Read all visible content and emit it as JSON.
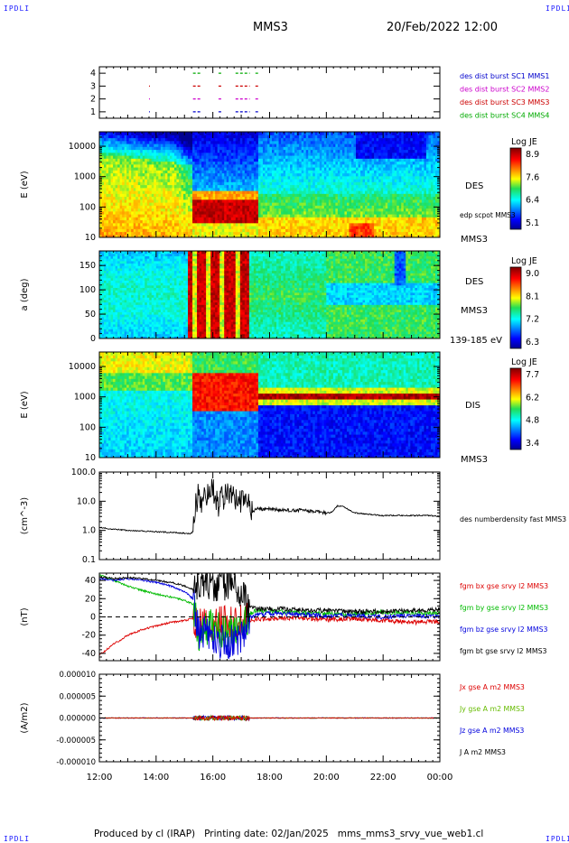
{
  "corner_label": "IPDLI",
  "header": {
    "spacecraft": "MMS3",
    "datetime": "20/Feb/2022 12:00"
  },
  "footer": {
    "produced_by": "Produced by cl (IRAP)",
    "printing_date": "Printing date: 02/Jan/2025",
    "filename": "mms_mms3_srvy_vue_web1.cl"
  },
  "x_ticks": [
    "12:00",
    "14:00",
    "16:00",
    "18:00",
    "20:00",
    "22:00",
    "00:00"
  ],
  "chart_data": [
    {
      "type": "scatter",
      "name": "burst availability",
      "ylim": [
        0.5,
        4.5
      ],
      "y_ticks": [
        "1",
        "2",
        "3",
        "4"
      ],
      "x_range_hours": [
        12,
        24
      ],
      "series": [
        {
          "name": "des dist burst SC1 MMS1",
          "color": "#0000cc",
          "level": 1,
          "intervals": [
            [
              13.75,
              13.78
            ],
            [
              15.3,
              15.6
            ],
            [
              16.2,
              16.3
            ],
            [
              16.8,
              17.3
            ],
            [
              17.5,
              17.65
            ]
          ]
        },
        {
          "name": "des dist burst SC2 MMS2",
          "color": "#cc00cc",
          "level": 2,
          "intervals": [
            [
              13.75,
              13.78
            ],
            [
              15.3,
              15.6
            ],
            [
              16.2,
              16.3
            ],
            [
              16.8,
              17.3
            ],
            [
              17.5,
              17.65
            ]
          ]
        },
        {
          "name": "des dist burst SC3 MMS3",
          "color": "#cc0000",
          "level": 3,
          "intervals": [
            [
              13.75,
              13.78
            ],
            [
              15.3,
              15.6
            ],
            [
              16.2,
              16.3
            ],
            [
              16.8,
              17.3
            ],
            [
              17.5,
              17.65
            ]
          ]
        },
        {
          "name": "des dist burst SC4 MMS4",
          "color": "#00aa00",
          "level": 4,
          "intervals": [
            [
              15.3,
              15.6
            ],
            [
              16.2,
              16.3
            ],
            [
              16.8,
              17.3
            ],
            [
              17.5,
              17.65
            ]
          ]
        }
      ]
    },
    {
      "type": "heatmap",
      "name": "electron energy spectrogram",
      "ylabel": "E (eV)",
      "ylog": true,
      "ylim": [
        10,
        30000
      ],
      "y_ticks": [
        "10",
        "100",
        "1000",
        "10000"
      ],
      "instrument": "DES",
      "spacecraft": "MMS3",
      "overlay_label": "edp scpot MMS3",
      "colorbar": {
        "title": "Log JE",
        "range": [
          5.1,
          8.9
        ],
        "ticks": [
          "8.9",
          "7.6",
          "6.4",
          "5.1"
        ]
      }
    },
    {
      "type": "heatmap",
      "name": "electron pitch angle distribution",
      "ylabel": "a (deg)",
      "ylim": [
        0,
        180
      ],
      "y_ticks": [
        "0",
        "50",
        "100",
        "150"
      ],
      "instrument": "DES",
      "spacecraft": "MMS3",
      "energy_range": "139-185 eV",
      "colorbar": {
        "title": "Log JE",
        "range": [
          6.3,
          9.0
        ],
        "ticks": [
          "9.0",
          "8.1",
          "7.2",
          "6.3"
        ]
      }
    },
    {
      "type": "heatmap",
      "name": "ion energy spectrogram",
      "ylabel": "E (eV)",
      "ylog": true,
      "ylim": [
        10,
        30000
      ],
      "y_ticks": [
        "10",
        "100",
        "1000",
        "10000"
      ],
      "instrument": "DIS",
      "spacecraft": "MMS3",
      "colorbar": {
        "title": "Log JE",
        "range": [
          3.4,
          7.7
        ],
        "ticks": [
          "7.7",
          "6.2",
          "4.8",
          "3.4"
        ]
      }
    },
    {
      "type": "line",
      "name": "density",
      "ylabel": "(cm^-3)",
      "ylog": true,
      "ylim": [
        0.1,
        100
      ],
      "y_ticks": [
        "0.1",
        "1.0",
        "10.0",
        "100.0"
      ],
      "series": [
        {
          "name": "des numberdensity fast MMS3",
          "color": "#000000",
          "x": [
            12.0,
            12.5,
            13.0,
            13.5,
            14.0,
            14.5,
            15.0,
            15.2,
            15.3,
            15.4,
            15.5,
            15.6,
            15.8,
            16.0,
            16.2,
            16.4,
            16.6,
            16.8,
            17.0,
            17.2,
            17.4,
            17.6,
            17.8,
            18.0,
            18.5,
            19.0,
            19.5,
            20.0,
            20.2,
            20.4,
            20.6,
            20.8,
            21.0,
            21.5,
            22.0,
            22.5,
            23.0,
            23.5,
            24.0
          ],
          "y": [
            1.25,
            1.1,
            1.0,
            0.95,
            0.9,
            0.85,
            0.8,
            0.75,
            0.9,
            8.0,
            18.0,
            3.0,
            20.0,
            22.0,
            8.0,
            15.0,
            20.0,
            12.0,
            9.0,
            14.0,
            4.0,
            6.0,
            5.0,
            5.5,
            4.8,
            5.0,
            4.5,
            4.0,
            4.2,
            7.0,
            6.5,
            5.0,
            4.0,
            3.6,
            3.2,
            3.3,
            3.2,
            3.3,
            3.0
          ]
        }
      ]
    },
    {
      "type": "line",
      "name": "magnetic field",
      "ylabel": "(nT)",
      "ylim": [
        -48,
        48
      ],
      "y_ticks": [
        "-40",
        "-20",
        "0",
        "20",
        "40"
      ],
      "series": [
        {
          "name": "fgm bx gse srvy l2 MMS3",
          "color": "#dd0000",
          "x": [
            12.0,
            12.5,
            13.0,
            13.5,
            14.0,
            14.5,
            15.0,
            15.3,
            15.5,
            16.0,
            16.5,
            17.0,
            17.3,
            17.5,
            18.0,
            19.0,
            20.0,
            21.0,
            22.0,
            23.0,
            24.0
          ],
          "y": [
            -42,
            -30,
            -20,
            -14,
            -10,
            -6,
            -4,
            -2,
            -10,
            -6,
            -8,
            -6,
            -4,
            -3,
            -2,
            -1,
            -3,
            -2,
            -4,
            -6,
            -5
          ]
        },
        {
          "name": "fgm by gse srvy l2 MMS3",
          "color": "#00bb00",
          "x": [
            12.0,
            12.5,
            13.0,
            13.5,
            14.0,
            14.5,
            15.0,
            15.3,
            15.5,
            16.0,
            16.5,
            17.0,
            17.3,
            17.5,
            18.0,
            19.0,
            20.0,
            21.0,
            22.0,
            23.0,
            24.0
          ],
          "y": [
            46,
            40,
            34,
            29,
            25,
            22,
            18,
            14,
            -20,
            -10,
            -18,
            -10,
            4,
            7,
            6,
            5,
            4,
            3,
            5,
            4,
            4
          ]
        },
        {
          "name": "fgm bz gse srvy l2 MMS3",
          "color": "#0000dd",
          "x": [
            12.0,
            12.5,
            13.0,
            13.5,
            14.0,
            14.5,
            15.0,
            15.3,
            15.5,
            16.0,
            16.5,
            17.0,
            17.3,
            17.5,
            18.0,
            19.0,
            20.0,
            21.0,
            22.0,
            23.0,
            24.0
          ],
          "y": [
            42,
            40,
            42,
            40,
            38,
            34,
            28,
            20,
            -15,
            -25,
            -30,
            -20,
            0,
            2,
            4,
            3,
            1,
            2,
            0,
            2,
            0
          ]
        },
        {
          "name": "fgm bt gse srvy l2 MMS3",
          "color": "#000000",
          "x": [
            12.0,
            12.5,
            13.0,
            13.5,
            14.0,
            14.5,
            15.0,
            15.3,
            15.5,
            16.0,
            16.5,
            17.0,
            17.3,
            17.5,
            18.0,
            19.0,
            20.0,
            21.0,
            22.0,
            23.0,
            24.0
          ],
          "y": [
            44,
            42,
            43,
            42,
            40,
            38,
            34,
            30,
            40,
            35,
            38,
            30,
            10,
            9,
            9,
            8,
            7,
            6,
            6,
            7,
            8
          ]
        }
      ]
    },
    {
      "type": "line",
      "name": "current density",
      "ylabel": "(A/m2)",
      "ylim": [
        -1e-05,
        1e-05
      ],
      "y_ticks": [
        "-0.000010",
        "-0.000005",
        "0.000000",
        "0.000005",
        "0.000010"
      ],
      "series": [
        {
          "name": "Jx gse A m2 MMS3",
          "color": "#dd0000"
        },
        {
          "name": "Jy gse A m2 MMS3",
          "color": "#66bb00"
        },
        {
          "name": "Jz gse A m2 MMS3",
          "color": "#0000dd"
        },
        {
          "name": "J A m2 MMS3",
          "color": "#000000"
        }
      ]
    }
  ]
}
